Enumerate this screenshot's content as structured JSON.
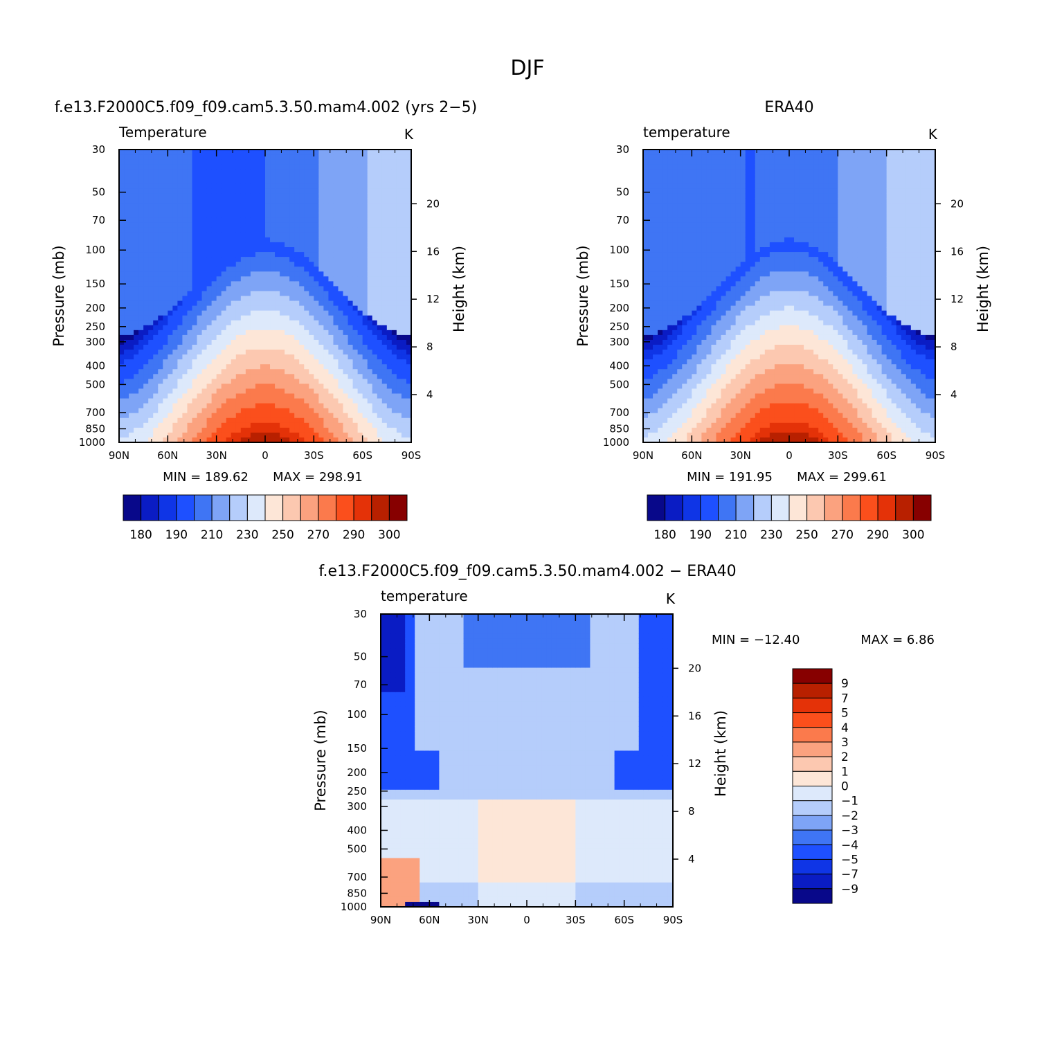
{
  "page_title": "DJF",
  "colors": {
    "model_obs_palette": [
      "#08088a",
      "#0a1cc4",
      "#0f35e6",
      "#1e50ff",
      "#3f75f4",
      "#7ea4f6",
      "#b5cdfb",
      "#dde9fb",
      "#fde6d7",
      "#fcc8b0",
      "#fba27f",
      "#fb7a4c",
      "#fb4f1c",
      "#e43208",
      "#b82000",
      "#870000"
    ],
    "diff_palette": [
      "#08088a",
      "#0a1cc4",
      "#0f35e6",
      "#1e50ff",
      "#3f75f4",
      "#7ea4f6",
      "#b5cdfb",
      "#dde9fb",
      "#fde6d7",
      "#fcc8b0",
      "#fba27f",
      "#fb7a4c",
      "#fb4f1c",
      "#e43208",
      "#b82000",
      "#870000"
    ]
  },
  "chart_data": [
    {
      "type": "heatmap",
      "title": "f.e13.F2000C5.f09_f09.cam5.3.50.mam4.002 (yrs 2−5)",
      "variable": "Temperature",
      "units": "K",
      "ylabel": "Pressure (mb)",
      "ylabel_right": "Height (km)",
      "x_ticks": [
        "90N",
        "60N",
        "30N",
        "0",
        "30S",
        "60S",
        "90S"
      ],
      "y_ticks": [
        "30",
        "50",
        "70",
        "100",
        "150",
        "200",
        "250",
        "300",
        "400",
        "500",
        "700",
        "850",
        "1000"
      ],
      "y_right_ticks": [
        "20",
        "16",
        "12",
        "8",
        "4"
      ],
      "min_label": "MIN = 189.62",
      "max_label": "MAX = 298.91",
      "min": 189.62,
      "max": 298.91,
      "colorbar_labels": [
        "180",
        "190",
        "210",
        "230",
        "250",
        "270",
        "290",
        "300"
      ],
      "colorbar_levels": [
        180,
        185,
        190,
        200,
        210,
        220,
        230,
        240,
        250,
        260,
        270,
        280,
        290,
        295,
        300
      ]
    },
    {
      "type": "heatmap",
      "title": "ERA40",
      "variable": "temperature",
      "units": "K",
      "ylabel": "Pressure (mb)",
      "ylabel_right": "Height (km)",
      "x_ticks": [
        "90N",
        "60N",
        "30N",
        "0",
        "30S",
        "60S",
        "90S"
      ],
      "y_ticks": [
        "30",
        "50",
        "70",
        "100",
        "150",
        "200",
        "250",
        "300",
        "400",
        "500",
        "700",
        "850",
        "1000"
      ],
      "y_right_ticks": [
        "20",
        "16",
        "12",
        "8",
        "4"
      ],
      "min_label": "MIN = 191.95",
      "max_label": "MAX = 299.61",
      "min": 191.95,
      "max": 299.61,
      "colorbar_labels": [
        "180",
        "190",
        "210",
        "230",
        "250",
        "270",
        "290",
        "300"
      ],
      "colorbar_levels": [
        180,
        185,
        190,
        200,
        210,
        220,
        230,
        240,
        250,
        260,
        270,
        280,
        290,
        295,
        300
      ]
    },
    {
      "type": "heatmap",
      "title": "f.e13.F2000C5.f09_f09.cam5.3.50.mam4.002 − ERA40",
      "variable": "temperature",
      "units": "K",
      "ylabel": "Pressure (mb)",
      "ylabel_right": "Height (km)",
      "x_ticks": [
        "90N",
        "60N",
        "30N",
        "0",
        "30S",
        "60S",
        "90S"
      ],
      "y_ticks": [
        "30",
        "50",
        "70",
        "100",
        "150",
        "200",
        "250",
        "300",
        "400",
        "500",
        "700",
        "850",
        "1000"
      ],
      "y_right_ticks": [
        "20",
        "16",
        "12",
        "8",
        "4"
      ],
      "min_label": "MIN = −12.40",
      "max_label": "MAX = 6.86",
      "min": -12.4,
      "max": 6.86,
      "colorbar_labels": [
        "9",
        "7",
        "5",
        "4",
        "3",
        "2",
        "1",
        "0",
        "−1",
        "−2",
        "−3",
        "−4",
        "−5",
        "−7",
        "−9"
      ],
      "colorbar_levels": [
        9,
        7,
        5,
        4,
        3,
        2,
        1,
        0,
        -1,
        -2,
        -3,
        -4,
        -5,
        -7,
        -9
      ]
    }
  ]
}
